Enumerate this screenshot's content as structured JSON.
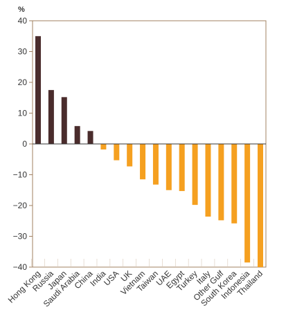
{
  "chart_data": {
    "type": "bar",
    "title": "",
    "xlabel": "",
    "ylabel": "%",
    "ylim": [
      -40,
      40
    ],
    "yticks": [
      40,
      30,
      20,
      10,
      0,
      -10,
      -20,
      -30,
      -40
    ],
    "ytick_labels": [
      "40",
      "30",
      "20",
      "10",
      "0",
      "−10",
      "−20",
      "−30",
      "−40"
    ],
    "categories": [
      "Hong Kong",
      "Russia",
      "Japan",
      "Saudi Arabia",
      "China",
      "India",
      "USA",
      "UK",
      "Vietnam",
      "Taiwan",
      "UAE",
      "Egypt",
      "Turkey",
      "Italy",
      "Other Gulf",
      "South Korea",
      "Indonesia",
      "Thailand"
    ],
    "values": [
      35,
      17.5,
      15.2,
      5.8,
      4.2,
      -1.8,
      -5.3,
      -7.3,
      -11.5,
      -13.2,
      -15,
      -15.3,
      -19.8,
      -23.6,
      -24.8,
      -25.8,
      -38.5,
      -40
    ],
    "colors": {
      "positive": "#4a2c2c",
      "negative": "#f5a020",
      "frame": "#a08060",
      "zero_line": "#333333"
    },
    "grid": false
  }
}
